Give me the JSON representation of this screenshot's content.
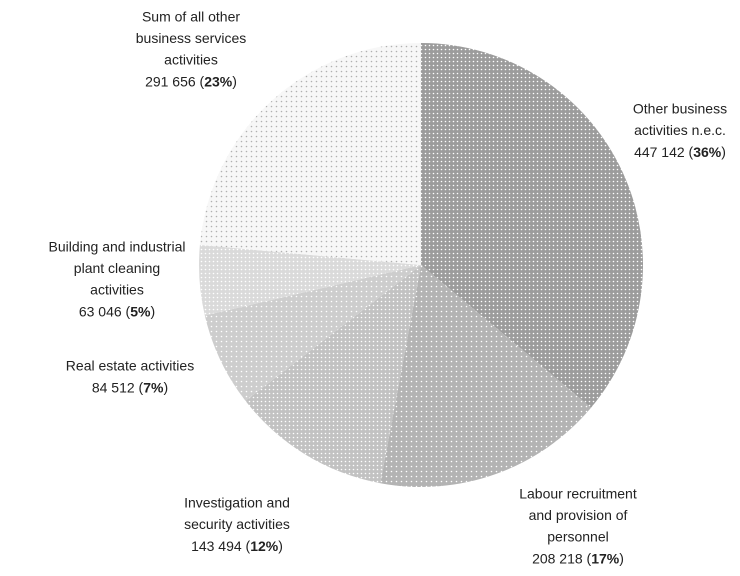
{
  "chart_data": {
    "type": "pie",
    "categories": [
      [
        "Other business",
        "activities n.e.c."
      ],
      [
        "Labour recruitment",
        "and provision of",
        "personnel"
      ],
      [
        "Investigation and",
        "security activities"
      ],
      [
        "Real estate activities"
      ],
      [
        "Building and industrial",
        "plant cleaning",
        "activities"
      ],
      [
        "Sum of all other",
        "business services",
        "activities"
      ]
    ],
    "values": [
      447142,
      208218,
      143494,
      84512,
      63046,
      291656
    ],
    "value_labels": [
      "447 142",
      "208 218",
      "143 494",
      "84 512",
      "63 046",
      "291 656"
    ],
    "percents": [
      36,
      17,
      12,
      7,
      5,
      23
    ],
    "percent_labels": [
      "36%",
      "17%",
      "12%",
      "7%",
      "5%",
      "23%"
    ],
    "colors": [
      "#9c9c9c",
      "#b3b3b3",
      "#c2c2c2",
      "#cdcdcd",
      "#dadada",
      "#f7f7f7"
    ]
  }
}
